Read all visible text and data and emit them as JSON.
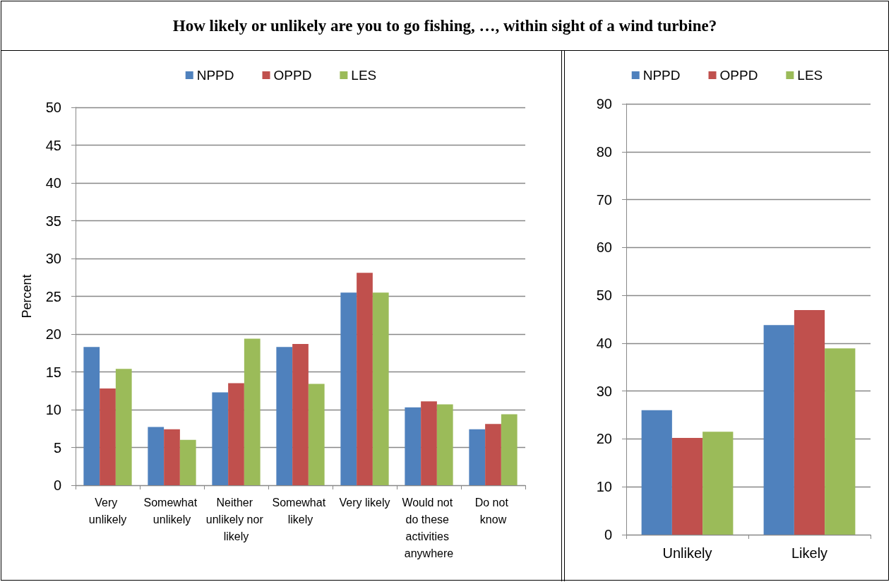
{
  "chart_data": [
    {
      "type": "bar",
      "title": "How likely or unlikely are you to go fishing, …, within sight of a wind turbine?",
      "ylabel": "Percent",
      "categories": [
        "Very unlikely",
        "Somewhat unlikely",
        "Neither unlikely nor likely",
        "Somewhat likely",
        "Very likely",
        "Would not do these activities anywhere",
        "Do not know"
      ],
      "series": [
        {
          "name": "NPPD",
          "color": "#4f81bd",
          "values": [
            18.3,
            7.7,
            12.3,
            18.3,
            25.5,
            10.3,
            7.4
          ]
        },
        {
          "name": "OPPD",
          "color": "#c0504d",
          "values": [
            12.8,
            7.4,
            13.5,
            18.7,
            28.1,
            11.1,
            8.1
          ]
        },
        {
          "name": "LES",
          "color": "#9bbb59",
          "values": [
            15.4,
            6.0,
            19.4,
            13.4,
            25.5,
            10.7,
            9.4
          ]
        }
      ],
      "ylim": [
        0,
        50
      ],
      "yticks": [
        0,
        5,
        10,
        15,
        20,
        25,
        30,
        35,
        40,
        45,
        50
      ],
      "grid": "y",
      "legend": "top"
    },
    {
      "type": "bar",
      "categories": [
        "Unlikely",
        "Likely"
      ],
      "series": [
        {
          "name": "NPPD",
          "color": "#4f81bd",
          "values": [
            26.0,
            43.8
          ]
        },
        {
          "name": "OPPD",
          "color": "#c0504d",
          "values": [
            20.2,
            46.9
          ]
        },
        {
          "name": "LES",
          "color": "#9bbb59",
          "values": [
            21.5,
            38.9
          ]
        }
      ],
      "ylim": [
        0,
        90
      ],
      "yticks": [
        0,
        10,
        20,
        30,
        40,
        50,
        60,
        70,
        80,
        90
      ],
      "grid": "y",
      "legend": "top"
    }
  ]
}
